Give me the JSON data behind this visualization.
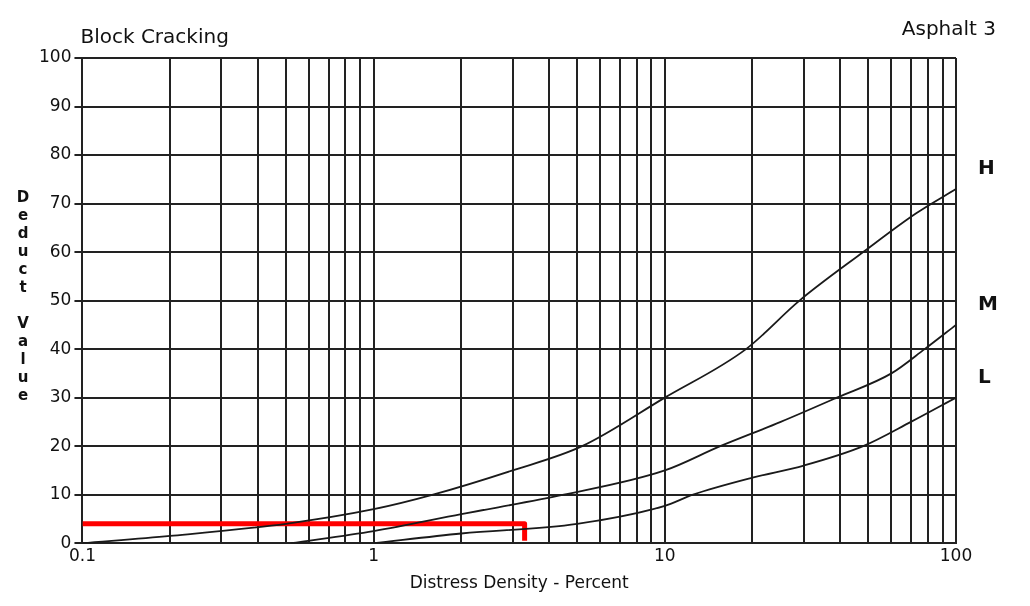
{
  "chart_data": {
    "type": "line",
    "title": "Block Cracking",
    "annotations": [
      "Asphalt 3"
    ],
    "xlabel": "Distress Density - Percent",
    "ylabel": "Deduct Value",
    "log": "x",
    "grid": true,
    "legend": false,
    "marker": "none",
    "line_style": "solid",
    "xlim": [
      0.1,
      100
    ],
    "ylim": [
      0,
      100
    ],
    "xticks": [
      0.1,
      {
        "value": 0.2,
        "label": null
      },
      {
        "value": 0.3,
        "label": null
      },
      {
        "value": 0.4,
        "label": null
      },
      {
        "value": 0.5,
        "label": null
      },
      {
        "value": 0.6,
        "label": null
      },
      {
        "value": 0.7,
        "label": null
      },
      {
        "value": 0.8,
        "label": null
      },
      {
        "value": 0.9,
        "label": null
      },
      1,
      {
        "value": 2,
        "label": null
      },
      {
        "value": 3,
        "label": null
      },
      {
        "value": 4,
        "label": null
      },
      {
        "value": 5,
        "label": null
      },
      {
        "value": 6,
        "label": null
      },
      {
        "value": 7,
        "label": null
      },
      {
        "value": 8,
        "label": null
      },
      {
        "value": 9,
        "label": null
      },
      10,
      {
        "value": 20,
        "label": null
      },
      {
        "value": 30,
        "label": null
      },
      {
        "value": 40,
        "label": null
      },
      {
        "value": 50,
        "label": null
      },
      {
        "value": 60,
        "label": null
      },
      {
        "value": 70,
        "label": null
      },
      {
        "value": 80,
        "label": null
      },
      {
        "value": 90,
        "label": null
      },
      100
    ],
    "yticks": [
      0,
      10,
      20,
      30,
      40,
      50,
      60,
      70,
      80,
      90,
      100
    ],
    "series": [
      {
        "name": "H",
        "color": "#1a1a1a",
        "x": [
          0.1,
          0.2,
          0.5,
          1,
          1.6,
          3,
          5.2,
          10,
          19,
          29,
          48,
          73,
          100
        ],
        "values": [
          0,
          1.5,
          4,
          7,
          10,
          15,
          20,
          30,
          40,
          50,
          60,
          68,
          73
        ]
      },
      {
        "name": "M",
        "color": "#1a1a1a",
        "x": [
          0.52,
          1,
          2,
          4.5,
          10,
          15.5,
          25,
          39,
          60,
          78,
          100
        ],
        "values": [
          0,
          2.5,
          6,
          10,
          15,
          20,
          25,
          30,
          35,
          40,
          45
        ]
      },
      {
        "name": "L",
        "color": "#1a1a1a",
        "x": [
          1,
          2,
          5,
          10,
          12.5,
          20,
          30,
          48,
          70,
          100
        ],
        "values": [
          0,
          2,
          4,
          7.7,
          10,
          13.5,
          16,
          20,
          25,
          30
        ]
      },
      {
        "color": "#ff0000",
        "x": [
          0.1,
          3.3,
          3.3
        ],
        "values": [
          4,
          4,
          0.5
        ]
      }
    ]
  }
}
